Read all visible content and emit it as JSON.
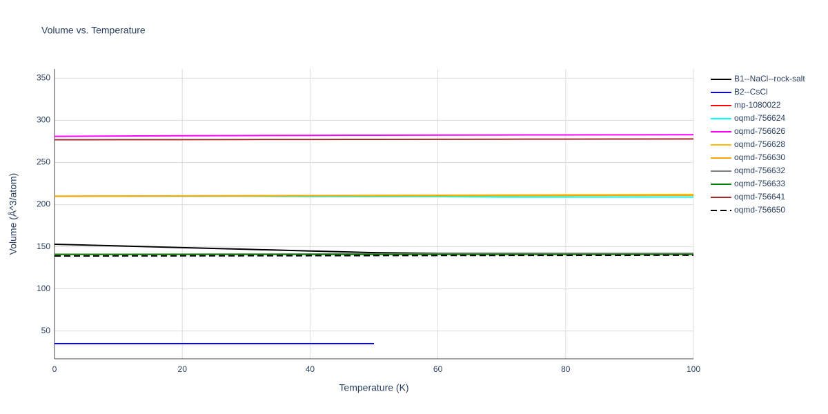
{
  "chart_data": {
    "type": "line",
    "title": "Volume vs. Temperature",
    "x_label": "Temperature (K)",
    "y_label": "Volume (Å^3/atom)",
    "x": [
      0,
      10,
      20,
      30,
      40,
      50,
      60,
      70,
      80,
      90,
      100
    ],
    "xlim": [
      0,
      100
    ],
    "xticks": [
      0,
      20,
      40,
      60,
      80,
      100
    ],
    "ylim": [
      17,
      361
    ],
    "yticks": [
      50,
      100,
      150,
      200,
      250,
      300,
      350
    ],
    "grid": true,
    "legend": "right",
    "series": [
      {
        "name": "B1--NaCl--rock-salt",
        "color": "#000000",
        "values": [
          153,
          151,
          149,
          147,
          145,
          143,
          142,
          142,
          142,
          142,
          142
        ]
      },
      {
        "name": "B2--CsCl",
        "color": "#0000ff",
        "values": [
          35,
          35,
          35,
          35,
          35,
          35,
          null,
          null,
          null,
          null,
          null
        ]
      },
      {
        "name": "mp-1080022",
        "color": "#ff0000",
        "values": [
          141,
          141,
          141,
          141,
          141,
          141,
          141,
          141,
          141,
          141,
          141
        ]
      },
      {
        "name": "oqmd-756624",
        "color": "#00ffff",
        "values": [
          210,
          210,
          210,
          210,
          209.5,
          209.5,
          209.5,
          209,
          209,
          209,
          209
        ]
      },
      {
        "name": "oqmd-756626",
        "color": "#ff00ff",
        "values": [
          281,
          281.5,
          281.8,
          282,
          282.2,
          282.4,
          282.6,
          282.7,
          282.8,
          282.9,
          283
        ]
      },
      {
        "name": "oqmd-756628",
        "color": "#ffbf00",
        "values": [
          210,
          210.2,
          210.4,
          210.6,
          210.8,
          211,
          211.2,
          211.4,
          211.6,
          211.8,
          212
        ]
      },
      {
        "name": "oqmd-756630",
        "color": "#ffa500",
        "values": [
          210,
          210.1,
          210.2,
          210.3,
          210.4,
          210.5,
          210.6,
          210.7,
          210.8,
          210.9,
          211
        ]
      },
      {
        "name": "oqmd-756632",
        "color": "#808080",
        "values": [
          141,
          141.1,
          141.2,
          141.3,
          141.4,
          141.5,
          141.6,
          141.7,
          141.8,
          141.9,
          142
        ]
      },
      {
        "name": "oqmd-756633",
        "color": "#008000",
        "values": [
          141,
          141,
          141,
          141,
          141,
          141,
          141,
          141,
          141,
          141,
          141
        ]
      },
      {
        "name": "oqmd-756641",
        "color": "#a52a2a",
        "values": [
          277,
          277.1,
          277.2,
          277.3,
          277.4,
          277.5,
          277.6,
          277.7,
          277.8,
          277.9,
          278
        ]
      },
      {
        "name": "oqmd-756650",
        "color": "#000000",
        "dash": true,
        "values": [
          139,
          139.1,
          139.2,
          139.3,
          139.4,
          139.5,
          139.6,
          139.7,
          139.8,
          139.9,
          140
        ]
      }
    ]
  }
}
